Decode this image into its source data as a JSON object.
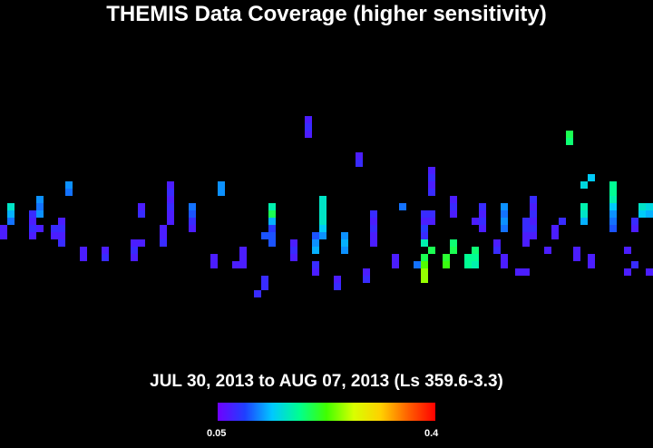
{
  "chart_data": {
    "type": "heatmap",
    "title": "THEMIS Data Coverage (higher sensitivity)",
    "subtitle": "JUL 30, 2013 to AUG 07, 2013 (Ls 359.6-3.3)",
    "colorbar": {
      "min_label": "0.05",
      "max_label": "0.4",
      "min": 0.05,
      "max": 0.4,
      "stops": [
        "#7000ff",
        "#1f3fff",
        "#00c8ff",
        "#00ff90",
        "#40ff00",
        "#d8ff00",
        "#ffd000",
        "#ff6000",
        "#ff0000"
      ]
    },
    "grid": {
      "cols": 90,
      "rows": 61
    },
    "cells": [
      {
        "c": 0,
        "r": 31,
        "v": 0.07
      },
      {
        "c": 0,
        "r": 32,
        "v": 0.07
      },
      {
        "c": 1,
        "r": 28,
        "v": 0.16
      },
      {
        "c": 1,
        "r": 29,
        "v": 0.13
      },
      {
        "c": 1,
        "r": 30,
        "v": 0.11
      },
      {
        "c": 4,
        "r": 29,
        "v": 0.08
      },
      {
        "c": 4,
        "r": 30,
        "v": 0.07
      },
      {
        "c": 4,
        "r": 31,
        "v": 0.08
      },
      {
        "c": 4,
        "r": 32,
        "v": 0.07
      },
      {
        "c": 5,
        "r": 27,
        "v": 0.12
      },
      {
        "c": 5,
        "r": 28,
        "v": 0.11
      },
      {
        "c": 5,
        "r": 29,
        "v": 0.12
      },
      {
        "c": 5,
        "r": 31,
        "v": 0.07
      },
      {
        "c": 7,
        "r": 31,
        "v": 0.08
      },
      {
        "c": 7,
        "r": 32,
        "v": 0.07
      },
      {
        "c": 8,
        "r": 30,
        "v": 0.07
      },
      {
        "c": 8,
        "r": 31,
        "v": 0.08
      },
      {
        "c": 8,
        "r": 32,
        "v": 0.07
      },
      {
        "c": 8,
        "r": 33,
        "v": 0.08
      },
      {
        "c": 9,
        "r": 25,
        "v": 0.12
      },
      {
        "c": 9,
        "r": 26,
        "v": 0.11
      },
      {
        "c": 11,
        "r": 34,
        "v": 0.07
      },
      {
        "c": 11,
        "r": 35,
        "v": 0.07
      },
      {
        "c": 14,
        "r": 34,
        "v": 0.07
      },
      {
        "c": 14,
        "r": 35,
        "v": 0.08
      },
      {
        "c": 18,
        "r": 33,
        "v": 0.07
      },
      {
        "c": 18,
        "r": 34,
        "v": 0.08
      },
      {
        "c": 18,
        "r": 35,
        "v": 0.07
      },
      {
        "c": 19,
        "r": 28,
        "v": 0.07
      },
      {
        "c": 19,
        "r": 29,
        "v": 0.08
      },
      {
        "c": 19,
        "r": 33,
        "v": 0.07
      },
      {
        "c": 22,
        "r": 31,
        "v": 0.07
      },
      {
        "c": 22,
        "r": 32,
        "v": 0.07
      },
      {
        "c": 22,
        "r": 33,
        "v": 0.08
      },
      {
        "c": 23,
        "r": 25,
        "v": 0.07
      },
      {
        "c": 23,
        "r": 26,
        "v": 0.08
      },
      {
        "c": 23,
        "r": 27,
        "v": 0.07
      },
      {
        "c": 23,
        "r": 28,
        "v": 0.08
      },
      {
        "c": 23,
        "r": 29,
        "v": 0.07
      },
      {
        "c": 23,
        "r": 30,
        "v": 0.07
      },
      {
        "c": 26,
        "r": 28,
        "v": 0.11
      },
      {
        "c": 26,
        "r": 29,
        "v": 0.1
      },
      {
        "c": 26,
        "r": 30,
        "v": 0.08
      },
      {
        "c": 26,
        "r": 31,
        "v": 0.07
      },
      {
        "c": 29,
        "r": 35,
        "v": 0.07
      },
      {
        "c": 29,
        "r": 36,
        "v": 0.07
      },
      {
        "c": 30,
        "r": 25,
        "v": 0.12
      },
      {
        "c": 30,
        "r": 26,
        "v": 0.12
      },
      {
        "c": 32,
        "r": 36,
        "v": 0.07
      },
      {
        "c": 33,
        "r": 34,
        "v": 0.07
      },
      {
        "c": 33,
        "r": 35,
        "v": 0.07
      },
      {
        "c": 33,
        "r": 36,
        "v": 0.07
      },
      {
        "c": 35,
        "r": 40,
        "v": 0.08
      },
      {
        "c": 36,
        "r": 38,
        "v": 0.08
      },
      {
        "c": 36,
        "r": 39,
        "v": 0.08
      },
      {
        "c": 36,
        "r": 32,
        "v": 0.1
      },
      {
        "c": 37,
        "r": 28,
        "v": 0.17
      },
      {
        "c": 37,
        "r": 29,
        "v": 0.2
      },
      {
        "c": 37,
        "r": 30,
        "v": 0.13
      },
      {
        "c": 37,
        "r": 31,
        "v": 0.09
      },
      {
        "c": 37,
        "r": 32,
        "v": 0.1
      },
      {
        "c": 37,
        "r": 33,
        "v": 0.1
      },
      {
        "c": 40,
        "r": 33,
        "v": 0.07
      },
      {
        "c": 40,
        "r": 34,
        "v": 0.08
      },
      {
        "c": 40,
        "r": 35,
        "v": 0.07
      },
      {
        "c": 42,
        "r": 16,
        "v": 0.07
      },
      {
        "c": 42,
        "r": 17,
        "v": 0.08
      },
      {
        "c": 42,
        "r": 18,
        "v": 0.07
      },
      {
        "c": 43,
        "r": 32,
        "v": 0.1
      },
      {
        "c": 43,
        "r": 33,
        "v": 0.12
      },
      {
        "c": 43,
        "r": 34,
        "v": 0.13
      },
      {
        "c": 43,
        "r": 36,
        "v": 0.08
      },
      {
        "c": 43,
        "r": 37,
        "v": 0.07
      },
      {
        "c": 44,
        "r": 27,
        "v": 0.16
      },
      {
        "c": 44,
        "r": 28,
        "v": 0.16
      },
      {
        "c": 44,
        "r": 29,
        "v": 0.16
      },
      {
        "c": 44,
        "r": 30,
        "v": 0.16
      },
      {
        "c": 44,
        "r": 31,
        "v": 0.14
      },
      {
        "c": 44,
        "r": 32,
        "v": 0.12
      },
      {
        "c": 46,
        "r": 38,
        "v": 0.07
      },
      {
        "c": 46,
        "r": 39,
        "v": 0.08
      },
      {
        "c": 47,
        "r": 32,
        "v": 0.12
      },
      {
        "c": 47,
        "r": 33,
        "v": 0.13
      },
      {
        "c": 47,
        "r": 34,
        "v": 0.12
      },
      {
        "c": 49,
        "r": 21,
        "v": 0.07
      },
      {
        "c": 49,
        "r": 22,
        "v": 0.08
      },
      {
        "c": 50,
        "r": 37,
        "v": 0.07
      },
      {
        "c": 50,
        "r": 38,
        "v": 0.08
      },
      {
        "c": 51,
        "r": 29,
        "v": 0.08
      },
      {
        "c": 51,
        "r": 30,
        "v": 0.07
      },
      {
        "c": 51,
        "r": 31,
        "v": 0.08
      },
      {
        "c": 51,
        "r": 32,
        "v": 0.07
      },
      {
        "c": 51,
        "r": 33,
        "v": 0.07
      },
      {
        "c": 54,
        "r": 35,
        "v": 0.07
      },
      {
        "c": 54,
        "r": 36,
        "v": 0.07
      },
      {
        "c": 55,
        "r": 28,
        "v": 0.11
      },
      {
        "c": 57,
        "r": 36,
        "v": 0.11
      },
      {
        "c": 58,
        "r": 29,
        "v": 0.08
      },
      {
        "c": 58,
        "r": 30,
        "v": 0.07
      },
      {
        "c": 58,
        "r": 31,
        "v": 0.09
      },
      {
        "c": 58,
        "r": 32,
        "v": 0.08
      },
      {
        "c": 58,
        "r": 33,
        "v": 0.17
      },
      {
        "c": 58,
        "r": 35,
        "v": 0.2
      },
      {
        "c": 58,
        "r": 36,
        "v": 0.23
      },
      {
        "c": 58,
        "r": 37,
        "v": 0.25
      },
      {
        "c": 58,
        "r": 38,
        "v": 0.25
      },
      {
        "c": 59,
        "r": 23,
        "v": 0.07
      },
      {
        "c": 59,
        "r": 24,
        "v": 0.08
      },
      {
        "c": 59,
        "r": 25,
        "v": 0.07
      },
      {
        "c": 59,
        "r": 26,
        "v": 0.08
      },
      {
        "c": 59,
        "r": 29,
        "v": 0.08
      },
      {
        "c": 59,
        "r": 30,
        "v": 0.07
      },
      {
        "c": 59,
        "r": 34,
        "v": 0.2
      },
      {
        "c": 61,
        "r": 35,
        "v": 0.21
      },
      {
        "c": 61,
        "r": 36,
        "v": 0.22
      },
      {
        "c": 62,
        "r": 27,
        "v": 0.07
      },
      {
        "c": 62,
        "r": 28,
        "v": 0.08
      },
      {
        "c": 62,
        "r": 29,
        "v": 0.07
      },
      {
        "c": 62,
        "r": 33,
        "v": 0.19
      },
      {
        "c": 62,
        "r": 34,
        "v": 0.2
      },
      {
        "c": 64,
        "r": 35,
        "v": 0.18
      },
      {
        "c": 64,
        "r": 36,
        "v": 0.18
      },
      {
        "c": 65,
        "r": 35,
        "v": 0.18
      },
      {
        "c": 65,
        "r": 36,
        "v": 0.17
      },
      {
        "c": 65,
        "r": 34,
        "v": 0.19
      },
      {
        "c": 65,
        "r": 30,
        "v": 0.07
      },
      {
        "c": 66,
        "r": 30,
        "v": 0.08
      },
      {
        "c": 66,
        "r": 28,
        "v": 0.08
      },
      {
        "c": 66,
        "r": 29,
        "v": 0.07
      },
      {
        "c": 66,
        "r": 30,
        "v": 0.08
      },
      {
        "c": 66,
        "r": 31,
        "v": 0.07
      },
      {
        "c": 68,
        "r": 33,
        "v": 0.07
      },
      {
        "c": 68,
        "r": 34,
        "v": 0.08
      },
      {
        "c": 69,
        "r": 35,
        "v": 0.07
      },
      {
        "c": 69,
        "r": 36,
        "v": 0.07
      },
      {
        "c": 69,
        "r": 28,
        "v": 0.12
      },
      {
        "c": 69,
        "r": 29,
        "v": 0.11
      },
      {
        "c": 69,
        "r": 30,
        "v": 0.12
      },
      {
        "c": 69,
        "r": 31,
        "v": 0.11
      },
      {
        "c": 71,
        "r": 37,
        "v": 0.07
      },
      {
        "c": 72,
        "r": 37,
        "v": 0.07
      },
      {
        "c": 72,
        "r": 30,
        "v": 0.08
      },
      {
        "c": 72,
        "r": 31,
        "v": 0.08
      },
      {
        "c": 72,
        "r": 32,
        "v": 0.07
      },
      {
        "c": 72,
        "r": 33,
        "v": 0.07
      },
      {
        "c": 73,
        "r": 27,
        "v": 0.08
      },
      {
        "c": 73,
        "r": 28,
        "v": 0.07
      },
      {
        "c": 73,
        "r": 29,
        "v": 0.08
      },
      {
        "c": 73,
        "r": 30,
        "v": 0.07
      },
      {
        "c": 73,
        "r": 31,
        "v": 0.08
      },
      {
        "c": 73,
        "r": 32,
        "v": 0.07
      },
      {
        "c": 75,
        "r": 34,
        "v": 0.07
      },
      {
        "c": 76,
        "r": 31,
        "v": 0.07
      },
      {
        "c": 76,
        "r": 32,
        "v": 0.07
      },
      {
        "c": 77,
        "r": 30,
        "v": 0.08
      },
      {
        "c": 78,
        "r": 18,
        "v": 0.2
      },
      {
        "c": 78,
        "r": 19,
        "v": 0.19
      },
      {
        "c": 79,
        "r": 34,
        "v": 0.07
      },
      {
        "c": 79,
        "r": 35,
        "v": 0.07
      },
      {
        "c": 80,
        "r": 25,
        "v": 0.15
      },
      {
        "c": 80,
        "r": 28,
        "v": 0.17
      },
      {
        "c": 80,
        "r": 29,
        "v": 0.16
      },
      {
        "c": 80,
        "r": 30,
        "v": 0.13
      },
      {
        "c": 81,
        "r": 24,
        "v": 0.14
      },
      {
        "c": 81,
        "r": 35,
        "v": 0.07
      },
      {
        "c": 81,
        "r": 36,
        "v": 0.07
      },
      {
        "c": 84,
        "r": 25,
        "v": 0.18
      },
      {
        "c": 84,
        "r": 26,
        "v": 0.18
      },
      {
        "c": 84,
        "r": 27,
        "v": 0.17
      },
      {
        "c": 84,
        "r": 28,
        "v": 0.14
      },
      {
        "c": 84,
        "r": 29,
        "v": 0.12
      },
      {
        "c": 84,
        "r": 30,
        "v": 0.11
      },
      {
        "c": 84,
        "r": 31,
        "v": 0.1
      },
      {
        "c": 86,
        "r": 34,
        "v": 0.07
      },
      {
        "c": 86,
        "r": 37,
        "v": 0.07
      },
      {
        "c": 87,
        "r": 30,
        "v": 0.08
      },
      {
        "c": 87,
        "r": 31,
        "v": 0.07
      },
      {
        "c": 87,
        "r": 36,
        "v": 0.08
      },
      {
        "c": 88,
        "r": 28,
        "v": 0.16
      },
      {
        "c": 88,
        "r": 29,
        "v": 0.14
      },
      {
        "c": 89,
        "r": 28,
        "v": 0.15
      },
      {
        "c": 89,
        "r": 29,
        "v": 0.13
      },
      {
        "c": 89,
        "r": 37,
        "v": 0.07
      }
    ]
  }
}
